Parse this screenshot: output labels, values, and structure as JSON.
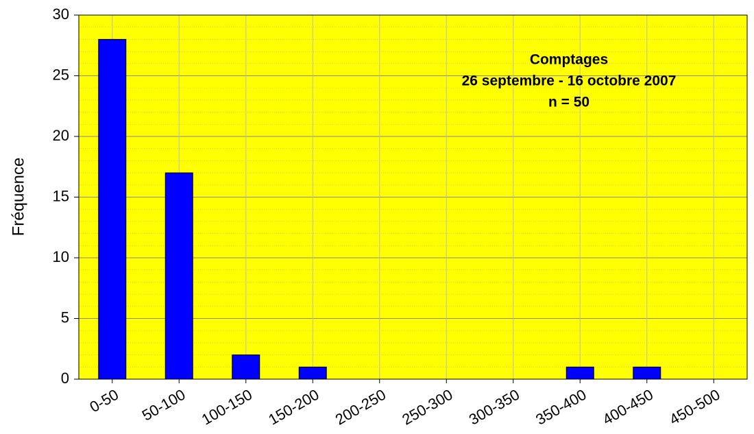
{
  "chart_data": {
    "type": "bar",
    "annotation": [
      "Comptages",
      "26 septembre - 16 octobre 2007",
      "n = 50"
    ],
    "y_label": "Fréquence",
    "categories": [
      "0-50",
      "50-100",
      "100-150",
      "150-200",
      "200-250",
      "250-300",
      "300-350",
      "350-400",
      "400-450",
      "450-500"
    ],
    "values": [
      28,
      17,
      2,
      1,
      0,
      0,
      0,
      1,
      1,
      0
    ],
    "color": "#0000ff",
    "background": "#ffff00",
    "ylim": [
      0,
      30
    ],
    "yticks": [
      0,
      5,
      10,
      15,
      20,
      25,
      30
    ],
    "grid": true
  }
}
